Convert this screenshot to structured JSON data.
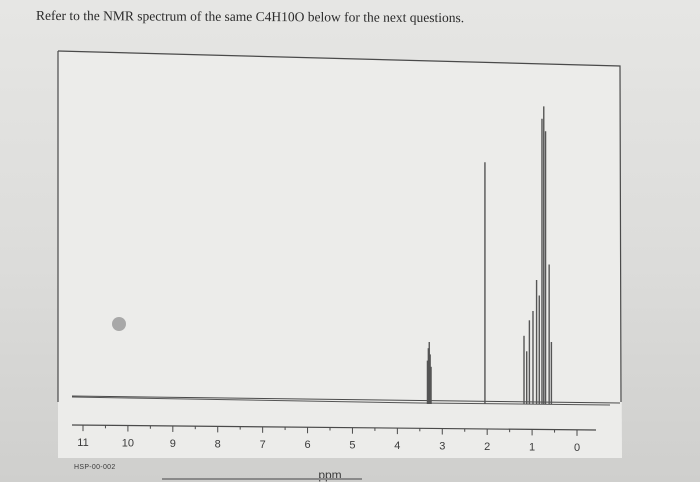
{
  "prompt": "Refer to the NMR spectrum of the same C4H10O below for the next questions.",
  "footer_code": "HSP-00-002",
  "chart_data": {
    "type": "line",
    "title": "",
    "xlabel": "ppm",
    "ylabel": "",
    "x_reversed": true,
    "xlim": [
      11.2,
      -0.3
    ],
    "ylim": [
      0,
      1
    ],
    "x_ticks": [
      11,
      10,
      9,
      8,
      7,
      6,
      5,
      4,
      3,
      2,
      1,
      0
    ],
    "grid": false,
    "peaks": [
      {
        "ppm": 3.33,
        "height": 0.14
      },
      {
        "ppm": 3.31,
        "height": 0.18
      },
      {
        "ppm": 3.29,
        "height": 0.2
      },
      {
        "ppm": 3.27,
        "height": 0.16
      },
      {
        "ppm": 3.25,
        "height": 0.12
      },
      {
        "ppm": 2.05,
        "height": 0.78
      },
      {
        "ppm": 1.18,
        "height": 0.22
      },
      {
        "ppm": 1.12,
        "height": 0.17
      },
      {
        "ppm": 1.06,
        "height": 0.27
      },
      {
        "ppm": 0.98,
        "height": 0.3
      },
      {
        "ppm": 0.9,
        "height": 0.4
      },
      {
        "ppm": 0.84,
        "height": 0.35
      },
      {
        "ppm": 0.78,
        "height": 0.92
      },
      {
        "ppm": 0.74,
        "height": 0.96
      },
      {
        "ppm": 0.7,
        "height": 0.88
      },
      {
        "ppm": 0.62,
        "height": 0.45
      },
      {
        "ppm": 0.57,
        "height": 0.2
      }
    ]
  },
  "colors": {
    "trace": "#555555",
    "frame": "#4a4a4a",
    "dot": "#a8a8a8"
  }
}
